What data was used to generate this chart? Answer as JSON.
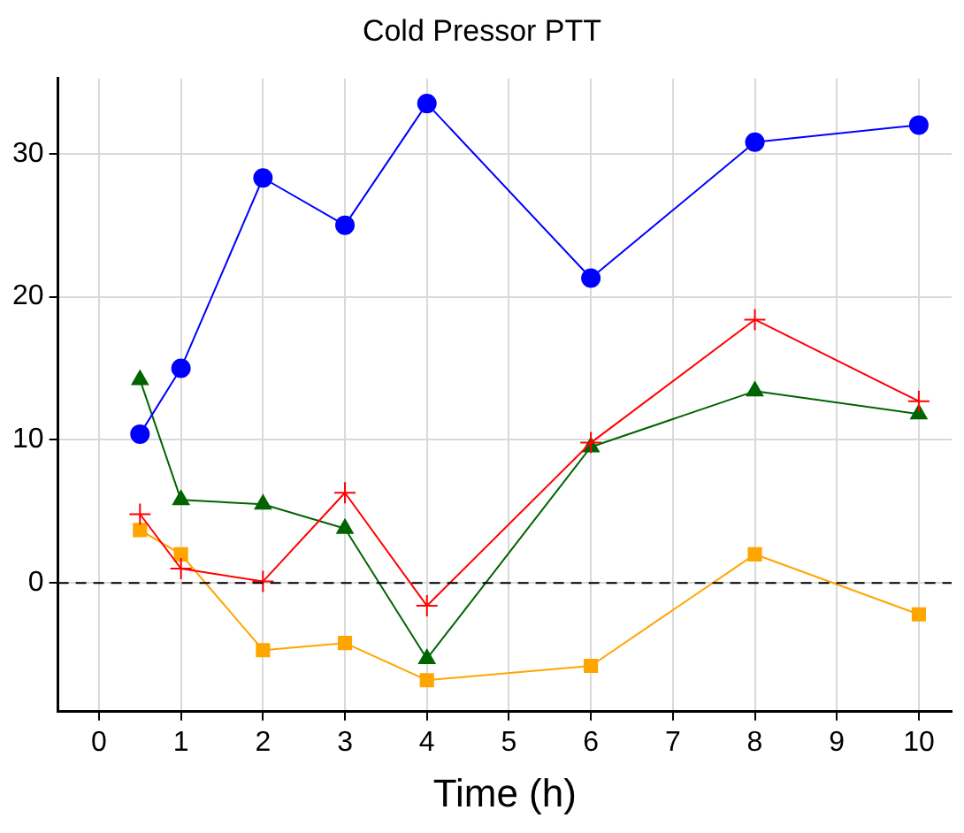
{
  "chart_data": {
    "type": "line",
    "title": "Cold Pressor PTT",
    "xlabel": "Time (h)",
    "x": [
      0.5,
      1,
      2,
      3,
      4,
      6,
      8,
      10
    ],
    "xlim": [
      -0.5,
      10.4
    ],
    "xticks": [
      0,
      1,
      2,
      3,
      4,
      5,
      6,
      7,
      8,
      9,
      10
    ],
    "ylim": [
      -9,
      35.25
    ],
    "yticks": [
      0,
      10,
      20,
      30
    ],
    "grid": true,
    "legend": false,
    "series": [
      {
        "color": "#0000ff",
        "marker": "circle",
        "values": [
          10.4,
          15,
          28.3,
          25,
          33.5,
          21.3,
          30.8,
          32
        ]
      },
      {
        "color": "#ff0000",
        "marker": "cross",
        "values": [
          4.8,
          1,
          0.1,
          6.3,
          -1.6,
          9.8,
          18.4,
          12.7
        ]
      },
      {
        "color": "#006400",
        "marker": "triangle",
        "values": [
          14.2,
          5.8,
          5.5,
          3.8,
          -5.3,
          9.5,
          13.4,
          11.8
        ]
      },
      {
        "color": "#ffa500",
        "marker": "square",
        "values": [
          3.7,
          2,
          -4.7,
          -4.2,
          -6.8,
          -5.8,
          2,
          -2.2
        ]
      }
    ],
    "ref_lines": [
      {
        "axis": "y",
        "value": 0,
        "color": "#000000",
        "line_style": "dashed"
      }
    ]
  }
}
